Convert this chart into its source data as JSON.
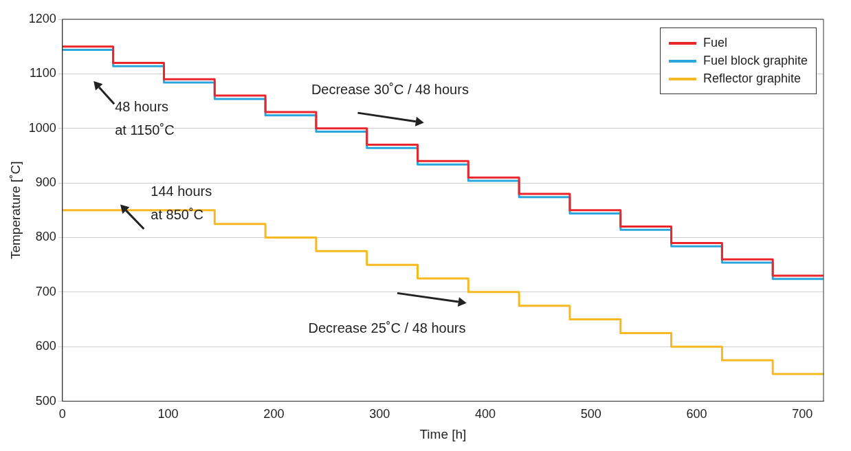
{
  "chart_data": {
    "type": "step",
    "xlabel": "Time [h]",
    "ylabel": "Temperature [˚C]",
    "xlim": [
      0,
      720
    ],
    "xticks": [
      0,
      100,
      200,
      300,
      400,
      500,
      600,
      700
    ],
    "ylim": [
      500,
      1200
    ],
    "yticks": [
      500,
      600,
      700,
      800,
      900,
      1000,
      1100,
      1200
    ],
    "grid": "y",
    "legend": "top right",
    "series": [
      {
        "name": "Fuel",
        "color": "#e8262b",
        "x": [
          0,
          48,
          96,
          144,
          192,
          240,
          288,
          336,
          384,
          432,
          480,
          528,
          576,
          624,
          672,
          720
        ],
        "values": [
          1150,
          1120,
          1090,
          1060,
          1030,
          1000,
          970,
          940,
          910,
          880,
          850,
          820,
          790,
          760,
          730,
          730
        ]
      },
      {
        "name": "Fuel block graphite",
        "color": "#2aa6dc",
        "x": [
          0,
          48,
          96,
          144,
          192,
          240,
          288,
          336,
          384,
          432,
          480,
          528,
          576,
          624,
          672,
          720
        ],
        "values": [
          1144,
          1114,
          1084,
          1054,
          1024,
          994,
          964,
          934,
          904,
          874,
          844,
          814,
          784,
          754,
          724,
          724
        ]
      },
      {
        "name": "Reflector graphite",
        "color": "#f7b921",
        "x": [
          0,
          144,
          192,
          240,
          288,
          336,
          384,
          432,
          480,
          528,
          576,
          624,
          672,
          720
        ],
        "values": [
          850,
          825,
          800,
          775,
          750,
          725,
          700,
          675,
          650,
          625,
          600,
          575,
          550,
          550
        ]
      }
    ],
    "annotations": [
      "48 hours\nat 1150˚C",
      "Decrease 30˚C / 48 hours",
      "144 hours\nat 850˚C",
      "Decrease 25˚C / 48 hours"
    ]
  }
}
